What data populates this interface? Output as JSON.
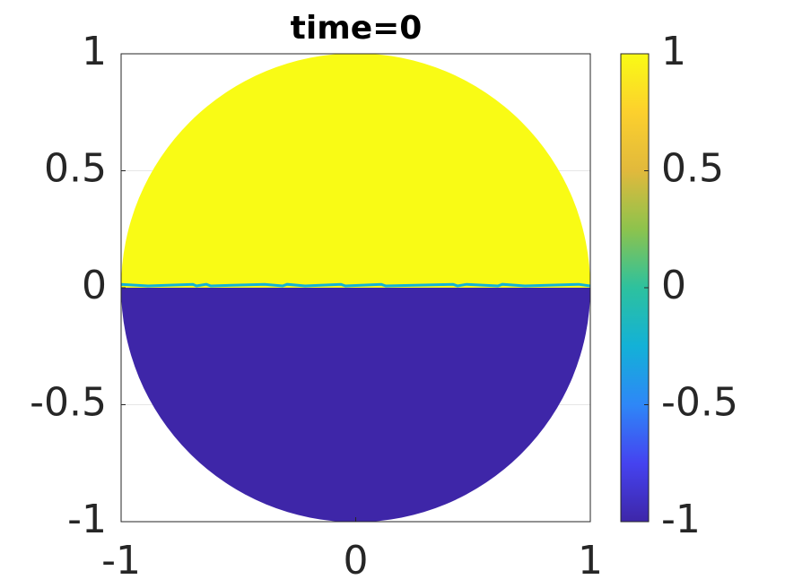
{
  "chart_data": {
    "type": "disk-field",
    "title": "time=0",
    "xlim": [
      -1,
      1
    ],
    "ylim": [
      -1,
      1
    ],
    "xticks": [
      -1,
      0,
      1
    ],
    "yticks": [
      -1,
      -0.5,
      0,
      0.5,
      1
    ],
    "grid": true,
    "field": {
      "upper": 1,
      "lower": -1,
      "interface_y": 0
    },
    "colorbar": {
      "clim": [
        -1,
        1
      ],
      "ticks": [
        -1,
        -0.5,
        0,
        0.5,
        1
      ],
      "colors": [
        "#3e26a8",
        "#4543f0",
        "#2e87f7",
        "#13b1d7",
        "#2dc19e",
        "#8dc34d",
        "#e1b93c",
        "#fcd02d",
        "#f9fb15"
      ]
    }
  }
}
